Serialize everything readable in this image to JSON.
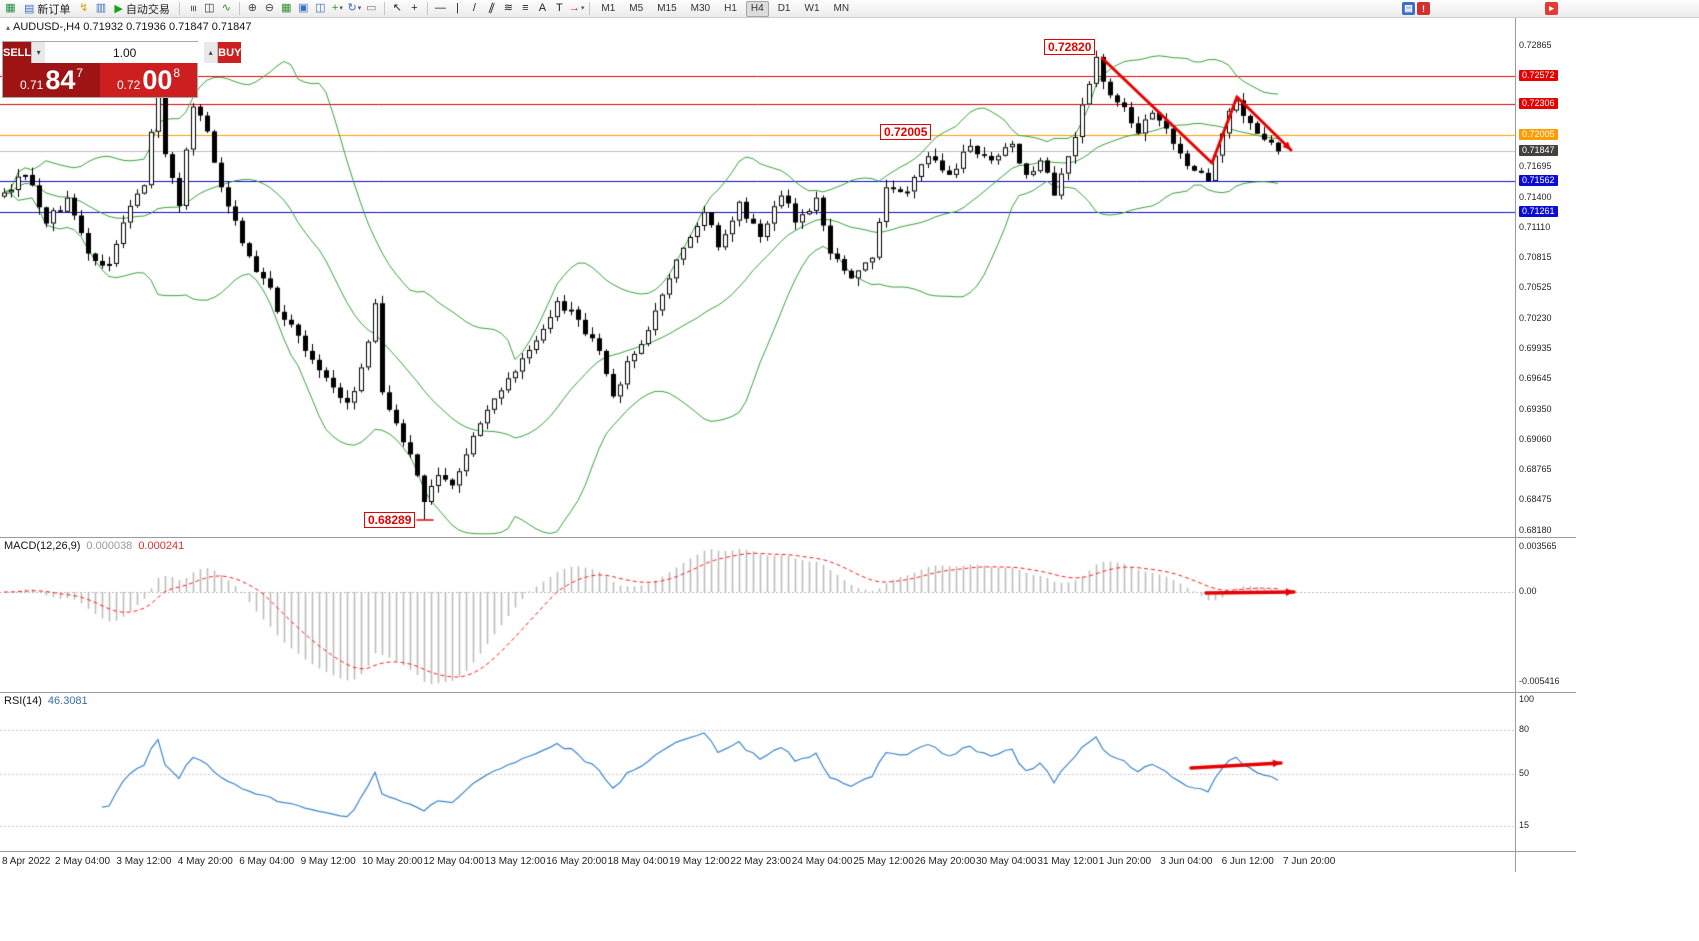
{
  "toolbar": {
    "new_order_label": "新订单",
    "autotrade_label": "自动交易",
    "items": [
      {
        "kind": "icon",
        "name": "terminal-icon",
        "glyph": "▦",
        "color": "#1e8a3c"
      },
      {
        "kind": "button",
        "name": "new-order-button",
        "icon_name": "new-order-icon",
        "glyph": "▤",
        "color": "#3b6fc4",
        "label_key": "new_order_label"
      },
      {
        "kind": "icon",
        "name": "mql-editor-icon",
        "glyph": "↯",
        "color": "#d9a400"
      },
      {
        "kind": "icon",
        "name": "market-watch-icon",
        "glyph": "▥",
        "color": "#3b6fc4"
      },
      {
        "kind": "button",
        "name": "autotrade-button",
        "icon_name": "autotrade-play-icon",
        "glyph": "▶",
        "color": "#18a018",
        "label_key": "autotrade_label"
      },
      {
        "kind": "sep"
      },
      {
        "kind": "icon",
        "name": "bar-chart-icon",
        "glyph": "≡",
        "color": "#333333",
        "rot": true
      },
      {
        "kind": "icon",
        "name": "candlestick-chart-icon",
        "glyph": "◫",
        "color": "#333333"
      },
      {
        "kind": "icon",
        "name": "line-chart-icon",
        "glyph": "∿",
        "color": "#2e8f2e"
      },
      {
        "kind": "sep"
      },
      {
        "kind": "icon",
        "name": "zoom-in-icon",
        "glyph": "⊕",
        "color": "#444444"
      },
      {
        "kind": "icon",
        "name": "zoom-out-icon",
        "glyph": "⊖",
        "color": "#444444"
      },
      {
        "kind": "icon",
        "name": "tile-windows-icon",
        "glyph": "▦",
        "color": "#2e8f2e"
      },
      {
        "kind": "icon",
        "name": "cascade-windows-icon",
        "glyph": "▣",
        "color": "#3b6fc4"
      },
      {
        "kind": "icon",
        "name": "tile-vertical-icon",
        "glyph": "◫",
        "color": "#3b6fc4"
      },
      {
        "kind": "icon",
        "name": "new-chart-icon",
        "glyph": "+",
        "color": "#18a018",
        "caret": true
      },
      {
        "kind": "icon",
        "name": "chart-cycle-icon",
        "glyph": "↻",
        "color": "#3b6fc4",
        "caret": true
      },
      {
        "kind": "icon",
        "name": "strategy-tester-icon",
        "glyph": "▭",
        "color": "#777777"
      },
      {
        "kind": "sep"
      },
      {
        "kind": "icon",
        "name": "cursor-icon",
        "glyph": "↖",
        "color": "#222222"
      },
      {
        "kind": "icon",
        "name": "crosshair-icon",
        "glyph": "+",
        "color": "#222222"
      },
      {
        "kind": "sep"
      },
      {
        "kind": "icon",
        "name": "horizontal-line-icon",
        "glyph": "—",
        "color": "#222222"
      },
      {
        "kind": "icon",
        "name": "vertical-line-icon",
        "glyph": "|",
        "color": "#222222"
      },
      {
        "kind": "icon",
        "name": "trendline-icon",
        "glyph": "/",
        "color": "#222222"
      },
      {
        "kind": "icon",
        "name": "equidistant-channel-icon",
        "glyph": "∥",
        "color": "#222222",
        "skew": true
      },
      {
        "kind": "icon",
        "name": "wave-icon",
        "glyph": "≋",
        "color": "#222222"
      },
      {
        "kind": "icon",
        "name": "fibonacci-icon",
        "glyph": "≡",
        "color": "#222222"
      },
      {
        "kind": "icon",
        "name": "text-icon",
        "glyph": "A",
        "color": "#222222"
      },
      {
        "kind": "icon",
        "name": "text-label-icon",
        "glyph": "T",
        "color": "#222222"
      },
      {
        "kind": "icon",
        "name": "arrows-tool-icon",
        "glyph": "→",
        "color": "#c22020",
        "caret": true
      },
      {
        "kind": "sep"
      },
      {
        "kind": "tfgroup"
      }
    ],
    "timeframes": [
      "M1",
      "M5",
      "M15",
      "M30",
      "H1",
      "H4",
      "D1",
      "W1",
      "MN"
    ],
    "active_timeframe": "H4",
    "right_icons": [
      {
        "name": "depth-of-market-icon",
        "glyph": "▤",
        "bg": "#3b6fc4"
      },
      {
        "name": "news-icon",
        "glyph": "!",
        "bg": "#d32f2f"
      }
    ],
    "alert_icon": {
      "name": "notification-icon",
      "glyph": "▸",
      "bg": "#e53935"
    }
  },
  "chart_header": {
    "title": "AUDUSD-,H4  0.71932 0.71936 0.71847 0.71847",
    "marker": "▴"
  },
  "order_panel": {
    "sell_label": "SELL",
    "buy_label": "BUY",
    "volume": "1.00",
    "sell_small": "0.71",
    "sell_big": "84",
    "sell_sup": "7",
    "buy_small": "0.72",
    "buy_big": "00",
    "buy_sup": "8"
  },
  "annotations": {
    "high": "0.72820",
    "mid": "0.72005",
    "low": "0.68289"
  },
  "indicators": {
    "macd": {
      "label": "MACD(12,26,9)",
      "value_main": "0.000038",
      "value_signal": "0.000241",
      "axis": [
        "0.003565",
        "0.00",
        "-0.005416"
      ]
    },
    "rsi": {
      "label": "RSI(14)",
      "value": "46.3081",
      "axis": [
        100,
        80,
        50,
        15
      ]
    }
  },
  "axis": {
    "price_labels": [
      {
        "t": "0.72865"
      },
      {
        "t": "0.72572",
        "bg": "#e60000"
      },
      {
        "t": "0.72306",
        "bg": "#e60000"
      },
      {
        "t": "0.72005",
        "bg": "#ff9d00"
      },
      {
        "t": "0.71847",
        "bg": "#43403e"
      },
      {
        "t": "0.71695"
      },
      {
        "t": "0.71562",
        "bg": "#0b0bd6"
      },
      {
        "t": "0.71400"
      },
      {
        "t": "0.71261",
        "bg": "#0b0bd6"
      },
      {
        "t": "0.71110"
      },
      {
        "t": "0.70815"
      },
      {
        "t": "0.70525"
      },
      {
        "t": "0.70230"
      },
      {
        "t": "0.69935"
      },
      {
        "t": "0.69645"
      },
      {
        "t": "0.69350"
      },
      {
        "t": "0.69060"
      },
      {
        "t": "0.68765"
      },
      {
        "t": "0.68475"
      },
      {
        "t": "0.68180"
      }
    ],
    "time_labels": [
      "8 Apr 2022",
      "2 May 04:00",
      "3 May 12:00",
      "4 May 20:00",
      "6 May 04:00",
      "9 May 12:00",
      "10 May 20:00",
      "12 May 04:00",
      "13 May 12:00",
      "16 May 20:00",
      "18 May 04:00",
      "19 May 12:00",
      "22 May 23:00",
      "24 May 04:00",
      "25 May 12:00",
      "26 May 20:00",
      "30 May 04:00",
      "31 May 12:00",
      "1 Jun 20:00",
      "3 Jun 04:00",
      "6 Jun 12:00",
      "7 Jun 20:00"
    ]
  },
  "hlines": [
    {
      "price": 0.72572,
      "color": "#e60000"
    },
    {
      "price": 0.72306,
      "color": "#e60000"
    },
    {
      "price": 0.72005,
      "color": "#ff9d00"
    },
    {
      "price": 0.71847,
      "color": "#bdbdbd"
    },
    {
      "price": 0.71562,
      "color": "#0b0bd6"
    },
    {
      "price": 0.71261,
      "color": "#0b0bd6"
    }
  ],
  "overlays": [
    {
      "name": "trend-arrow",
      "panel": "main",
      "width": 3,
      "head": true,
      "color": "#e60000",
      "points": [
        [
          1102,
          58
        ],
        [
          1212,
          163
        ],
        [
          1237,
          97
        ],
        [
          1291,
          150
        ]
      ]
    },
    {
      "name": "low-annotation-tick",
      "panel": "main",
      "width": 1.5,
      "head": false,
      "color": "#e60000",
      "points": [
        [
          417,
          520
        ],
        [
          433,
          520
        ]
      ]
    },
    {
      "name": "macd-arrow",
      "panel": "macd",
      "width": 3.5,
      "head": true,
      "color": "#e60000",
      "points": [
        [
          1206,
          593
        ],
        [
          1294,
          592
        ]
      ]
    },
    {
      "name": "rsi-arrow",
      "panel": "rsi",
      "width": 3.5,
      "head": true,
      "color": "#e60000",
      "points": [
        [
          1191,
          768
        ],
        [
          1281,
          763
        ]
      ]
    }
  ],
  "chart_data": {
    "type": "candlestick",
    "symbol": "AUDUSD-",
    "timeframe": "H4",
    "quote": {
      "open": "0.71932",
      "high": "0.71936",
      "low": "0.71847",
      "close": "0.71847"
    },
    "count": 183,
    "seed": 20220607,
    "noise": 0.00065,
    "wick": 0.00075,
    "close_anchors": [
      [
        0,
        0.7145
      ],
      [
        3,
        0.7162
      ],
      [
        6,
        0.7115
      ],
      [
        9,
        0.714
      ],
      [
        12,
        0.7086
      ],
      [
        15,
        0.7076
      ],
      [
        17,
        0.7116
      ],
      [
        20,
        0.7152
      ],
      [
        22,
        0.7248
      ],
      [
        23,
        0.7182
      ],
      [
        25,
        0.7132
      ],
      [
        27,
        0.7228
      ],
      [
        29,
        0.7204
      ],
      [
        31,
        0.715
      ],
      [
        34,
        0.7096
      ],
      [
        37,
        0.7062
      ],
      [
        40,
        0.7022
      ],
      [
        43,
        0.6992
      ],
      [
        46,
        0.6966
      ],
      [
        49,
        0.6942
      ],
      [
        51,
        0.6976
      ],
      [
        53,
        0.7038
      ],
      [
        54,
        0.6952
      ],
      [
        56,
        0.6922
      ],
      [
        58,
        0.6892
      ],
      [
        60,
        0.6846
      ],
      [
        62,
        0.6872
      ],
      [
        64,
        0.6862
      ],
      [
        66,
        0.6892
      ],
      [
        68,
        0.6922
      ],
      [
        70,
        0.6946
      ],
      [
        73,
        0.6972
      ],
      [
        76,
        0.7002
      ],
      [
        79,
        0.704
      ],
      [
        82,
        0.7022
      ],
      [
        85,
        0.6992
      ],
      [
        87,
        0.6948
      ],
      [
        89,
        0.6982
      ],
      [
        92,
        0.7012
      ],
      [
        95,
        0.7062
      ],
      [
        98,
        0.7102
      ],
      [
        100,
        0.7126
      ],
      [
        102,
        0.7092
      ],
      [
        105,
        0.7136
      ],
      [
        108,
        0.7102
      ],
      [
        111,
        0.7142
      ],
      [
        113,
        0.7116
      ],
      [
        116,
        0.714
      ],
      [
        118,
        0.7086
      ],
      [
        121,
        0.7062
      ],
      [
        124,
        0.7082
      ],
      [
        126,
        0.715
      ],
      [
        129,
        0.7146
      ],
      [
        132,
        0.718
      ],
      [
        135,
        0.7162
      ],
      [
        138,
        0.719
      ],
      [
        141,
        0.7176
      ],
      [
        144,
        0.7192
      ],
      [
        146,
        0.7162
      ],
      [
        148,
        0.7176
      ],
      [
        150,
        0.7142
      ],
      [
        152,
        0.718
      ],
      [
        154,
        0.723
      ],
      [
        156,
        0.7276
      ],
      [
        157,
        0.7252
      ],
      [
        159,
        0.7232
      ],
      [
        162,
        0.7202
      ],
      [
        164,
        0.7222
      ],
      [
        167,
        0.7192
      ],
      [
        170,
        0.7166
      ],
      [
        172,
        0.7156
      ],
      [
        174,
        0.7202
      ],
      [
        176,
        0.7234
      ],
      [
        178,
        0.7212
      ],
      [
        180,
        0.7196
      ],
      [
        182,
        0.71847
      ]
    ],
    "extremes": [
      {
        "i": 22,
        "high": 0.7272
      },
      {
        "i": 60,
        "low": 0.68289
      },
      {
        "i": 156,
        "high": 0.7282
      }
    ],
    "indicator_settings": {
      "bollinger": {
        "period": 20,
        "deviation": 2
      },
      "macd": {
        "fast": 12,
        "slow": 26,
        "signal": 9
      },
      "rsi": {
        "period": 14
      }
    }
  },
  "colors": {
    "accent_red": "#e60000",
    "candle_up": "#ffffff",
    "candle_down": "#000000",
    "bollinger": "#3aa13a",
    "macd_hist": "#bdbdbd",
    "macd_signal": "#ff1e1e",
    "rsi_line": "#3f86cc"
  }
}
